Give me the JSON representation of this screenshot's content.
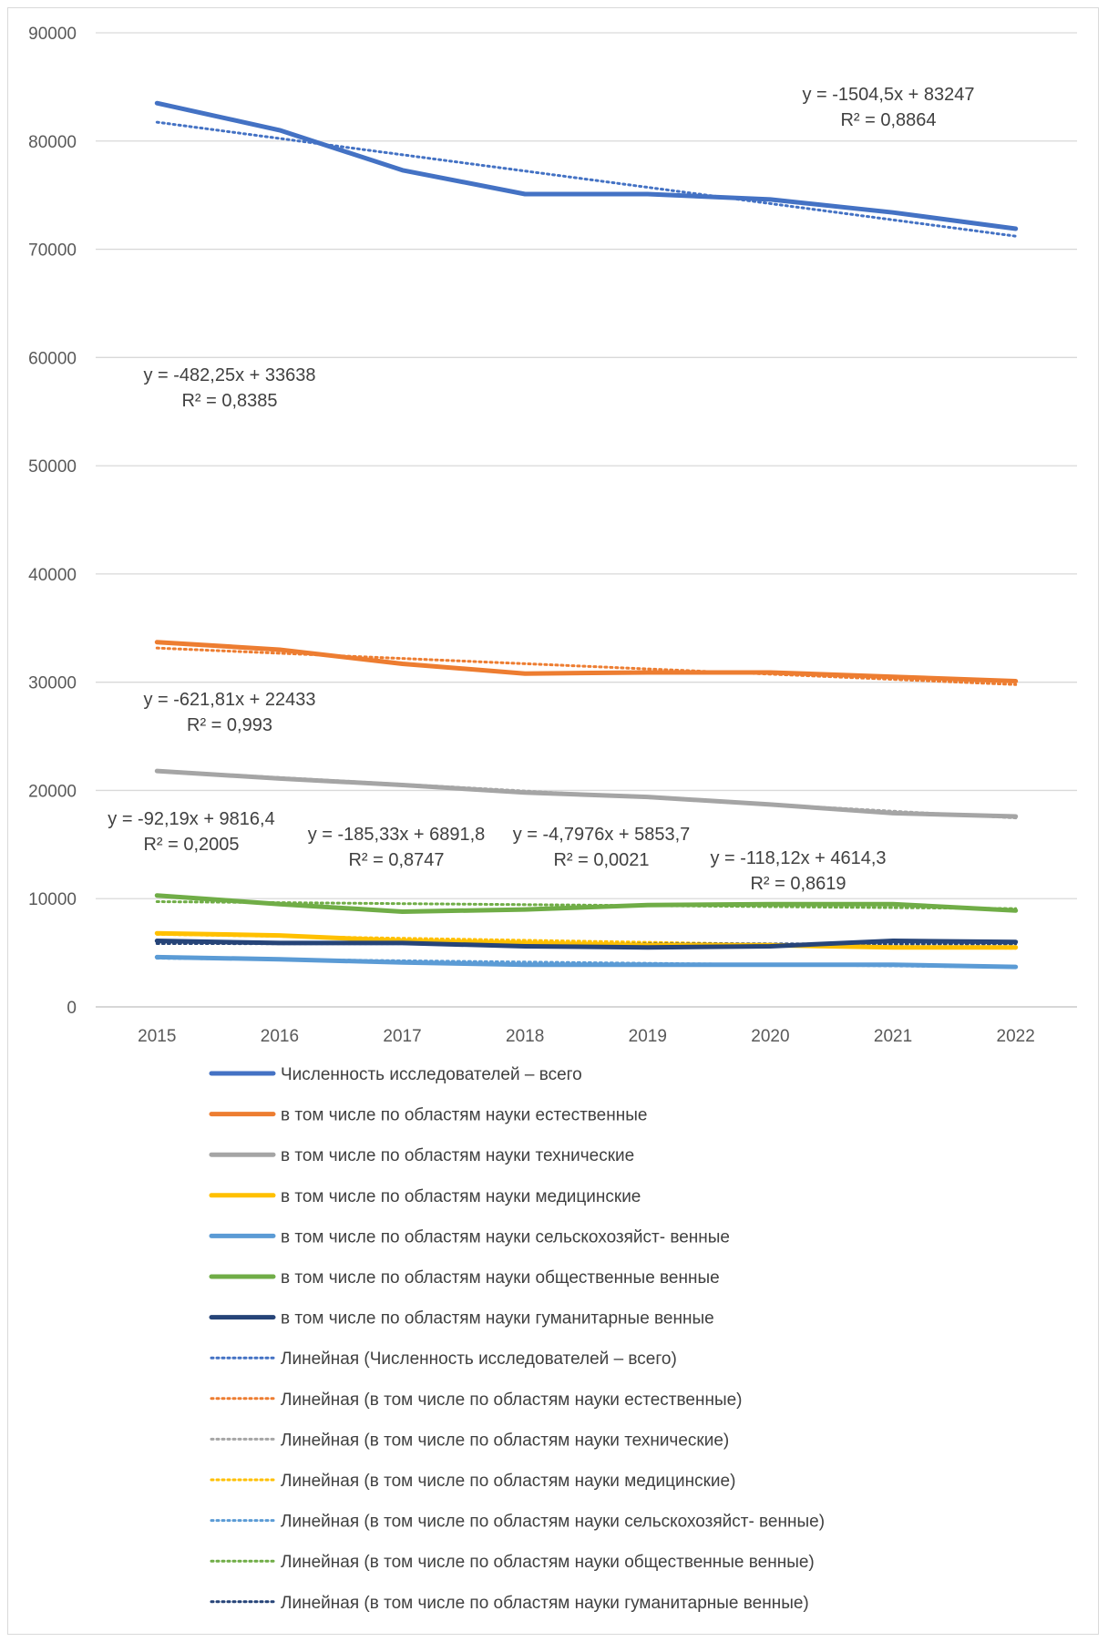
{
  "chart_data": {
    "type": "line",
    "title": "",
    "xlabel": "",
    "ylabel": "",
    "x": [
      "2015",
      "2016",
      "2017",
      "2018",
      "2019",
      "2020",
      "2021",
      "2022"
    ],
    "y_ticks": [
      "0",
      "10000",
      "20000",
      "30000",
      "40000",
      "50000",
      "60000",
      "70000",
      "80000",
      "90000"
    ],
    "ylim": [
      0,
      90000
    ],
    "grid": "horizontal",
    "legend_position": "bottom",
    "series": [
      {
        "name": "Численность исследователей – всего",
        "color": "#4472c4",
        "values": [
          83500,
          81000,
          77300,
          75100,
          75100,
          74600,
          73400,
          71900
        ]
      },
      {
        "name": "в том числе по областям науки естественные",
        "color": "#ed7d31",
        "values": [
          33700,
          33000,
          31700,
          30800,
          30900,
          30900,
          30500,
          30100
        ]
      },
      {
        "name": "в том числе по областям науки технические",
        "color": "#a5a5a5",
        "values": [
          21800,
          21100,
          20500,
          19800,
          19400,
          18700,
          17900,
          17600
        ]
      },
      {
        "name": "в том числе по областям науки медицинские",
        "color": "#ffc000",
        "values": [
          6800,
          6600,
          6100,
          5900,
          5700,
          5700,
          5500,
          5500
        ]
      },
      {
        "name": "в том числе по областям науки сельскохозяйст- венные",
        "color": "#5b9bd5",
        "values": [
          4600,
          4400,
          4100,
          3900,
          3900,
          3900,
          3900,
          3700
        ]
      },
      {
        "name": "в том числе по областям науки общественные венные",
        "color": "#70ad47",
        "values": [
          10300,
          9500,
          8800,
          9000,
          9400,
          9500,
          9500,
          8900
        ]
      },
      {
        "name": "в том числе по областям науки гуманитарные венные",
        "color": "#264478",
        "values": [
          6100,
          5900,
          5900,
          5600,
          5500,
          5600,
          6100,
          6000
        ]
      }
    ],
    "trendlines": [
      {
        "name": "Линейная (Численность исследователей – всего)",
        "color": "#4472c4",
        "equation": "y = -1504,5x + 83247",
        "r2": "R² = 0,8864",
        "slope": -1504.5,
        "intercept": 83247
      },
      {
        "name": "Линейная (в том числе по областям науки естественные)",
        "color": "#ed7d31",
        "equation": "y = -482,25x + 33638",
        "r2": "R² = 0,8385",
        "slope": -482.25,
        "intercept": 33638
      },
      {
        "name": "Линейная (в том числе по областям науки технические)",
        "color": "#a5a5a5",
        "equation": "y = -621,81x + 22433",
        "r2": "R² = 0,993",
        "slope": -621.81,
        "intercept": 22433
      },
      {
        "name": "Линейная (в том числе по областям науки медицинские)",
        "color": "#ffc000",
        "equation": "y = -185,33x + 6891,8",
        "r2": "R² = 0,8747",
        "slope": -185.33,
        "intercept": 6891.8
      },
      {
        "name": "Линейная (в том числе по областям науки сельскохозяйст- венные)",
        "color": "#5b9bd5",
        "equation": "y = -118,12x + 4614,3",
        "r2": "R² = 0,8619",
        "slope": -118.12,
        "intercept": 4614.3
      },
      {
        "name": "Линейная (в том числе по областям науки общественные венные)",
        "color": "#70ad47",
        "equation": "y = -92,19x + 9816,4",
        "r2": "R² = 0,2005",
        "slope": -92.19,
        "intercept": 9816.4
      },
      {
        "name": "Линейная (в том числе по областям науки гуманитарные венные)",
        "color": "#264478",
        "equation": "y = -4,7976x + 5853,7",
        "r2": "R² = 0,0021",
        "slope": -4.7976,
        "intercept": 5853.7
      }
    ]
  }
}
